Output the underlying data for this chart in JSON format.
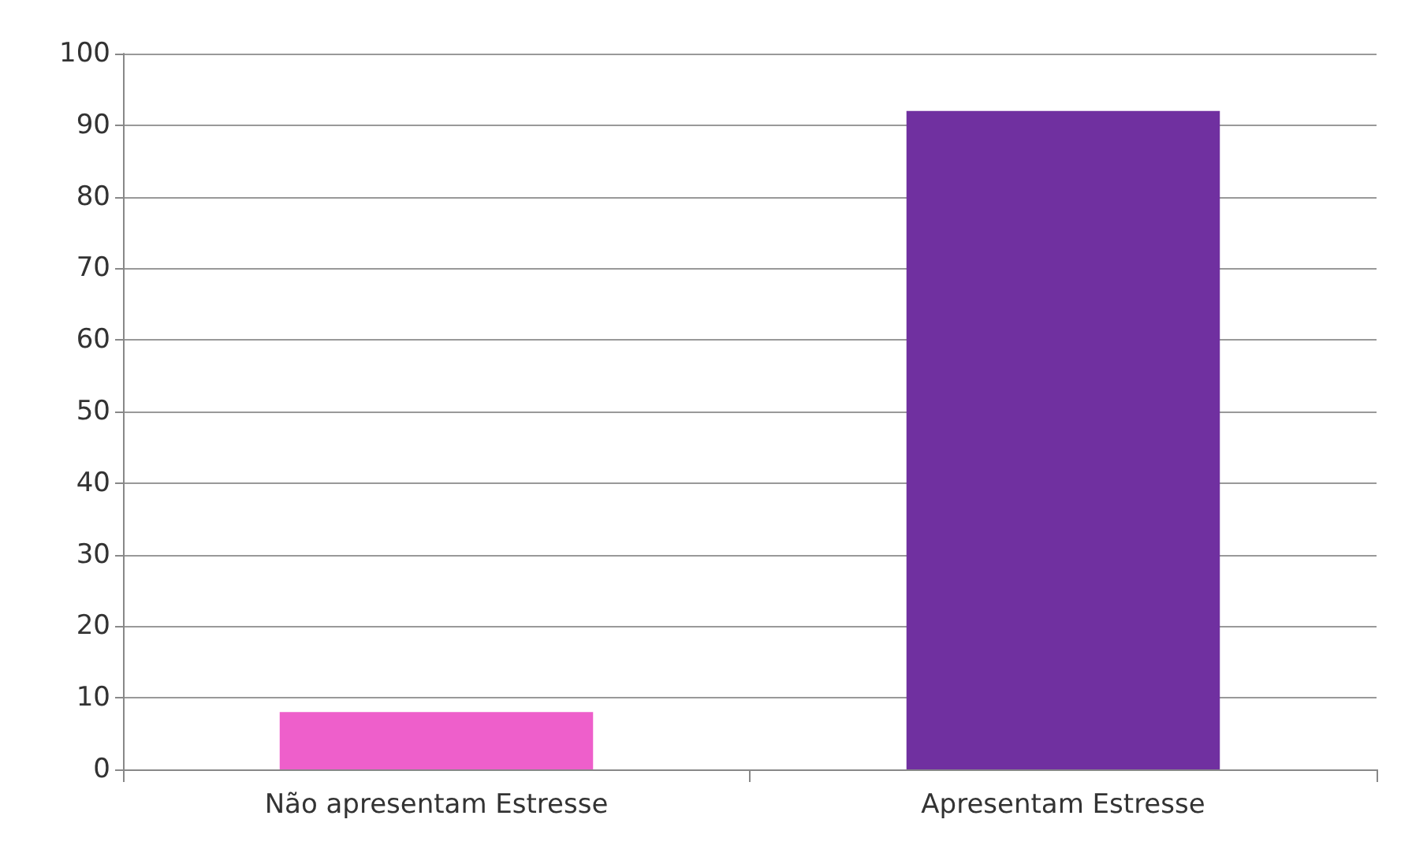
{
  "chart_data": {
    "type": "bar",
    "categories": [
      "Não apresentam Estresse",
      "Apresentam Estresse"
    ],
    "values": [
      8,
      92
    ],
    "colors": [
      "#ee5fcb",
      "#7030a0"
    ],
    "ylim": [
      0,
      100
    ],
    "yticks": [
      0,
      10,
      20,
      30,
      40,
      50,
      60,
      70,
      80,
      90,
      100
    ],
    "grid": "y"
  }
}
